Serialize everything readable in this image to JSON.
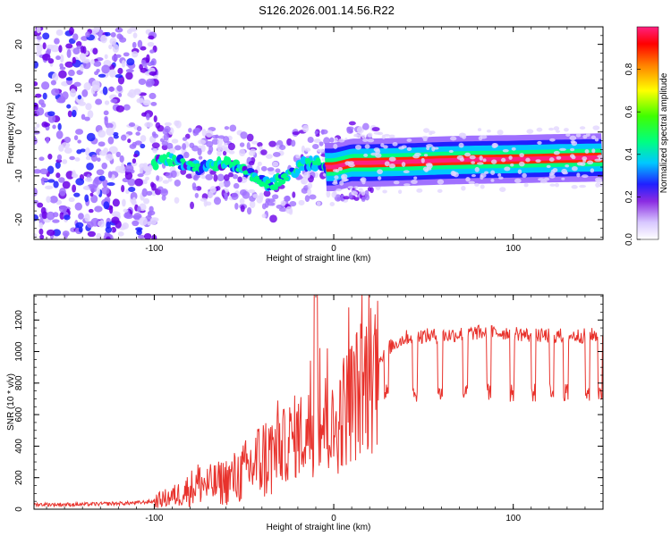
{
  "title": "S126.2026.001.14.56.R22",
  "chart_data": [
    {
      "type": "heatmap",
      "name": "spectrogram",
      "xlabel": "Height of straight line (km)",
      "ylabel": "Frequency (Hz)",
      "xlim": [
        -167,
        150
      ],
      "ylim": [
        -24.5,
        24
      ],
      "xticks": [
        -100,
        0,
        100
      ],
      "yticks": [
        -20,
        -10,
        0,
        10,
        20
      ],
      "xtick_labels": [
        "-100",
        "0",
        "100"
      ],
      "ytick_labels": [
        "-20",
        "-10",
        "0",
        "10",
        "20"
      ],
      "ridge": {
        "x": [
          -100,
          -92,
          -85,
          -78,
          -70,
          -62,
          -55,
          -48,
          -42,
          -36,
          -30,
          -25,
          -20,
          -15,
          -10,
          -5,
          0,
          10,
          20,
          40,
          60,
          80,
          100,
          120,
          150
        ],
        "freq": [
          -7,
          -6,
          -7,
          -8,
          -8,
          -7,
          -8,
          -9,
          -11,
          -12,
          -11,
          -10,
          -8,
          -7,
          -7,
          -8,
          -8,
          -7,
          -7,
          -6.8,
          -6.5,
          -6.3,
          -6.2,
          -6.0,
          -5.8
        ]
      },
      "colorbar": {
        "label": "Normalized spectral amplitude",
        "range": [
          0,
          1
        ],
        "ticks": [
          0.0,
          0.2,
          0.4,
          0.6,
          0.8
        ],
        "tick_labels": [
          "0.0",
          "0.2",
          "0.4",
          "0.6",
          "0.8"
        ]
      }
    },
    {
      "type": "line",
      "name": "snr",
      "xlabel": "Height of straight line (km)",
      "ylabel": "SNR (10 * v/v)",
      "xlim": [
        -167,
        150
      ],
      "ylim": [
        0,
        1360
      ],
      "xticks": [
        -100,
        0,
        100
      ],
      "yticks": [
        0,
        200,
        400,
        600,
        800,
        1000,
        1200
      ],
      "xtick_labels": [
        "-100",
        "0",
        "100"
      ],
      "ytick_labels": [
        "0",
        "200",
        "400",
        "600",
        "800",
        "1000",
        "1200"
      ],
      "series": [
        {
          "name": "SNR",
          "color": "#e8322c",
          "x": [
            -167,
            -140,
            -110,
            -100,
            -90,
            -85,
            -80,
            -75,
            -70,
            -65,
            -60,
            -55,
            -50,
            -45,
            -40,
            -35,
            -30,
            -25,
            -20,
            -15,
            -10,
            -5,
            0,
            5,
            10,
            15,
            20,
            25,
            30,
            40,
            50,
            60,
            70,
            80,
            90,
            100,
            110,
            120,
            130,
            140,
            150
          ],
          "y": [
            30,
            30,
            40,
            50,
            80,
            100,
            130,
            170,
            150,
            160,
            180,
            200,
            230,
            280,
            320,
            340,
            380,
            430,
            470,
            480,
            520,
            560,
            480,
            620,
            700,
            760,
            850,
            950,
            1020,
            1090,
            1100,
            1100,
            1110,
            1120,
            1120,
            1120,
            1100,
            1100,
            1100,
            1100,
            1110
          ]
        }
      ]
    }
  ],
  "palette": {
    "series_line": "#e8322c",
    "heat_low": "#c8b8ff",
    "heat_mid": "#00e0a0",
    "heat_high": "#ff2020"
  }
}
